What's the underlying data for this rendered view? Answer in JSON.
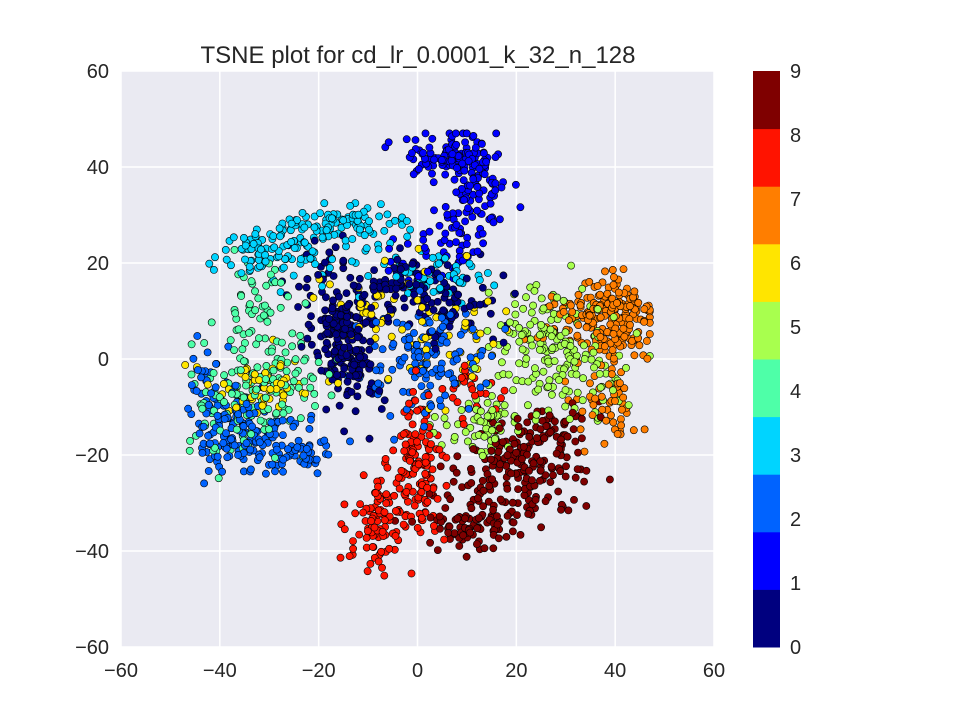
{
  "chart_data": {
    "type": "scatter",
    "title": "TSNE plot for cd_lr_0.0001_k_32_n_128",
    "xlabel": "",
    "ylabel": "",
    "xlim": [
      -60,
      60
    ],
    "ylim": [
      -60,
      60
    ],
    "x_ticks": [
      -60,
      -40,
      -20,
      0,
      20,
      40,
      60
    ],
    "y_ticks": [
      -60,
      -40,
      -20,
      0,
      20,
      40,
      60
    ],
    "x_tick_labels": [
      "−60",
      "−40",
      "−20",
      "0",
      "20",
      "40",
      "60"
    ],
    "y_tick_labels": [
      "−60",
      "−40",
      "−20",
      "0",
      "20",
      "40",
      "60"
    ],
    "grid": true,
    "background": "#eaeaf2",
    "colorbar": {
      "labels": [
        "0",
        "1",
        "2",
        "3",
        "4",
        "5",
        "6",
        "7",
        "8",
        "9"
      ],
      "colors": [
        "#00007f",
        "#0000ff",
        "#0063ff",
        "#00d4ff",
        "#4effa8",
        "#a8ff4e",
        "#ffe500",
        "#ff7e00",
        "#ff1300",
        "#7f0000"
      ]
    },
    "series": [
      {
        "label": "0",
        "clusters": [
          {
            "cx": -15,
            "cy": 5,
            "sx": 3,
            "sy": 6,
            "n": 190
          },
          {
            "cx": -3,
            "cy": 15,
            "sx": 4,
            "sy": 3,
            "n": 60
          },
          {
            "cx": 7,
            "cy": 12,
            "sx": 5,
            "sy": 5,
            "n": 70
          },
          {
            "cx": -20,
            "cy": 19,
            "sx": 4,
            "sy": 5,
            "n": 25
          },
          {
            "cx": -12,
            "cy": -8,
            "sx": 4,
            "sy": 4,
            "n": 20
          }
        ]
      },
      {
        "label": "1",
        "clusters": [
          {
            "cx": 7,
            "cy": 42,
            "sx": 5,
            "sy": 2,
            "n": 90
          },
          {
            "cx": 12,
            "cy": 37,
            "sx": 3,
            "sy": 6,
            "n": 90
          },
          {
            "cx": 8,
            "cy": 25,
            "sx": 3,
            "sy": 4,
            "n": 35
          },
          {
            "cx": 0,
            "cy": 22,
            "sx": 5,
            "sy": 3,
            "n": 20
          }
        ]
      },
      {
        "label": "2",
        "clusters": [
          {
            "cx": -37,
            "cy": -16,
            "sx": 4,
            "sy": 4,
            "n": 110
          },
          {
            "cx": -25,
            "cy": -18,
            "sx": 4,
            "sy": 3,
            "n": 70
          },
          {
            "cx": 2,
            "cy": 0,
            "sx": 7,
            "sy": 6,
            "n": 130
          },
          {
            "cx": -42,
            "cy": -5,
            "sx": 2,
            "sy": 4,
            "n": 30
          }
        ]
      },
      {
        "label": "3",
        "clusters": [
          {
            "cx": -30,
            "cy": 22,
            "sx": 6,
            "sy": 3,
            "n": 100
          },
          {
            "cx": -14,
            "cy": 28,
            "sx": 6,
            "sy": 2,
            "n": 90
          },
          {
            "cx": 3,
            "cy": 18,
            "sx": 6,
            "sy": 3,
            "n": 50
          }
        ]
      },
      {
        "label": "4",
        "clusters": [
          {
            "cx": -36,
            "cy": -8,
            "sx": 5,
            "sy": 7,
            "n": 110
          },
          {
            "cx": -32,
            "cy": 12,
            "sx": 3,
            "sy": 5,
            "n": 40
          },
          {
            "cx": -26,
            "cy": -5,
            "sx": 5,
            "sy": 5,
            "n": 60
          }
        ]
      },
      {
        "label": "5",
        "clusters": [
          {
            "cx": 26,
            "cy": 3,
            "sx": 6,
            "sy": 6,
            "n": 160
          },
          {
            "cx": 14,
            "cy": -14,
            "sx": 4,
            "sy": 3,
            "n": 60
          },
          {
            "cx": 36,
            "cy": -5,
            "sx": 4,
            "sy": 4,
            "n": 30
          }
        ]
      },
      {
        "label": "6",
        "clusters": [
          {
            "cx": -32,
            "cy": -6,
            "sx": 6,
            "sy": 3,
            "n": 55
          },
          {
            "cx": 5,
            "cy": 5,
            "sx": 8,
            "sy": 7,
            "n": 50
          },
          {
            "cx": -10,
            "cy": 10,
            "sx": 6,
            "sy": 6,
            "n": 30
          }
        ]
      },
      {
        "label": "7",
        "clusters": [
          {
            "cx": 40,
            "cy": 8,
            "sx": 4,
            "sy": 5,
            "n": 180
          },
          {
            "cx": 38,
            "cy": -10,
            "sx": 3,
            "sy": 4,
            "n": 50
          },
          {
            "cx": 30,
            "cy": 8,
            "sx": 4,
            "sy": 3,
            "n": 40
          }
        ]
      },
      {
        "label": "8",
        "clusters": [
          {
            "cx": 0,
            "cy": -22,
            "sx": 2.5,
            "sy": 7,
            "n": 130
          },
          {
            "cx": -8,
            "cy": -35,
            "sx": 3,
            "sy": 5,
            "n": 90
          },
          {
            "cx": 12,
            "cy": -7,
            "sx": 3,
            "sy": 3,
            "n": 25
          }
        ]
      },
      {
        "label": "9",
        "clusters": [
          {
            "cx": 20,
            "cy": -23,
            "sx": 6,
            "sy": 5,
            "n": 170
          },
          {
            "cx": 12,
            "cy": -34,
            "sx": 5,
            "sy": 3,
            "n": 90
          },
          {
            "cx": 28,
            "cy": -15,
            "sx": 4,
            "sy": 3,
            "n": 50
          }
        ]
      }
    ]
  }
}
